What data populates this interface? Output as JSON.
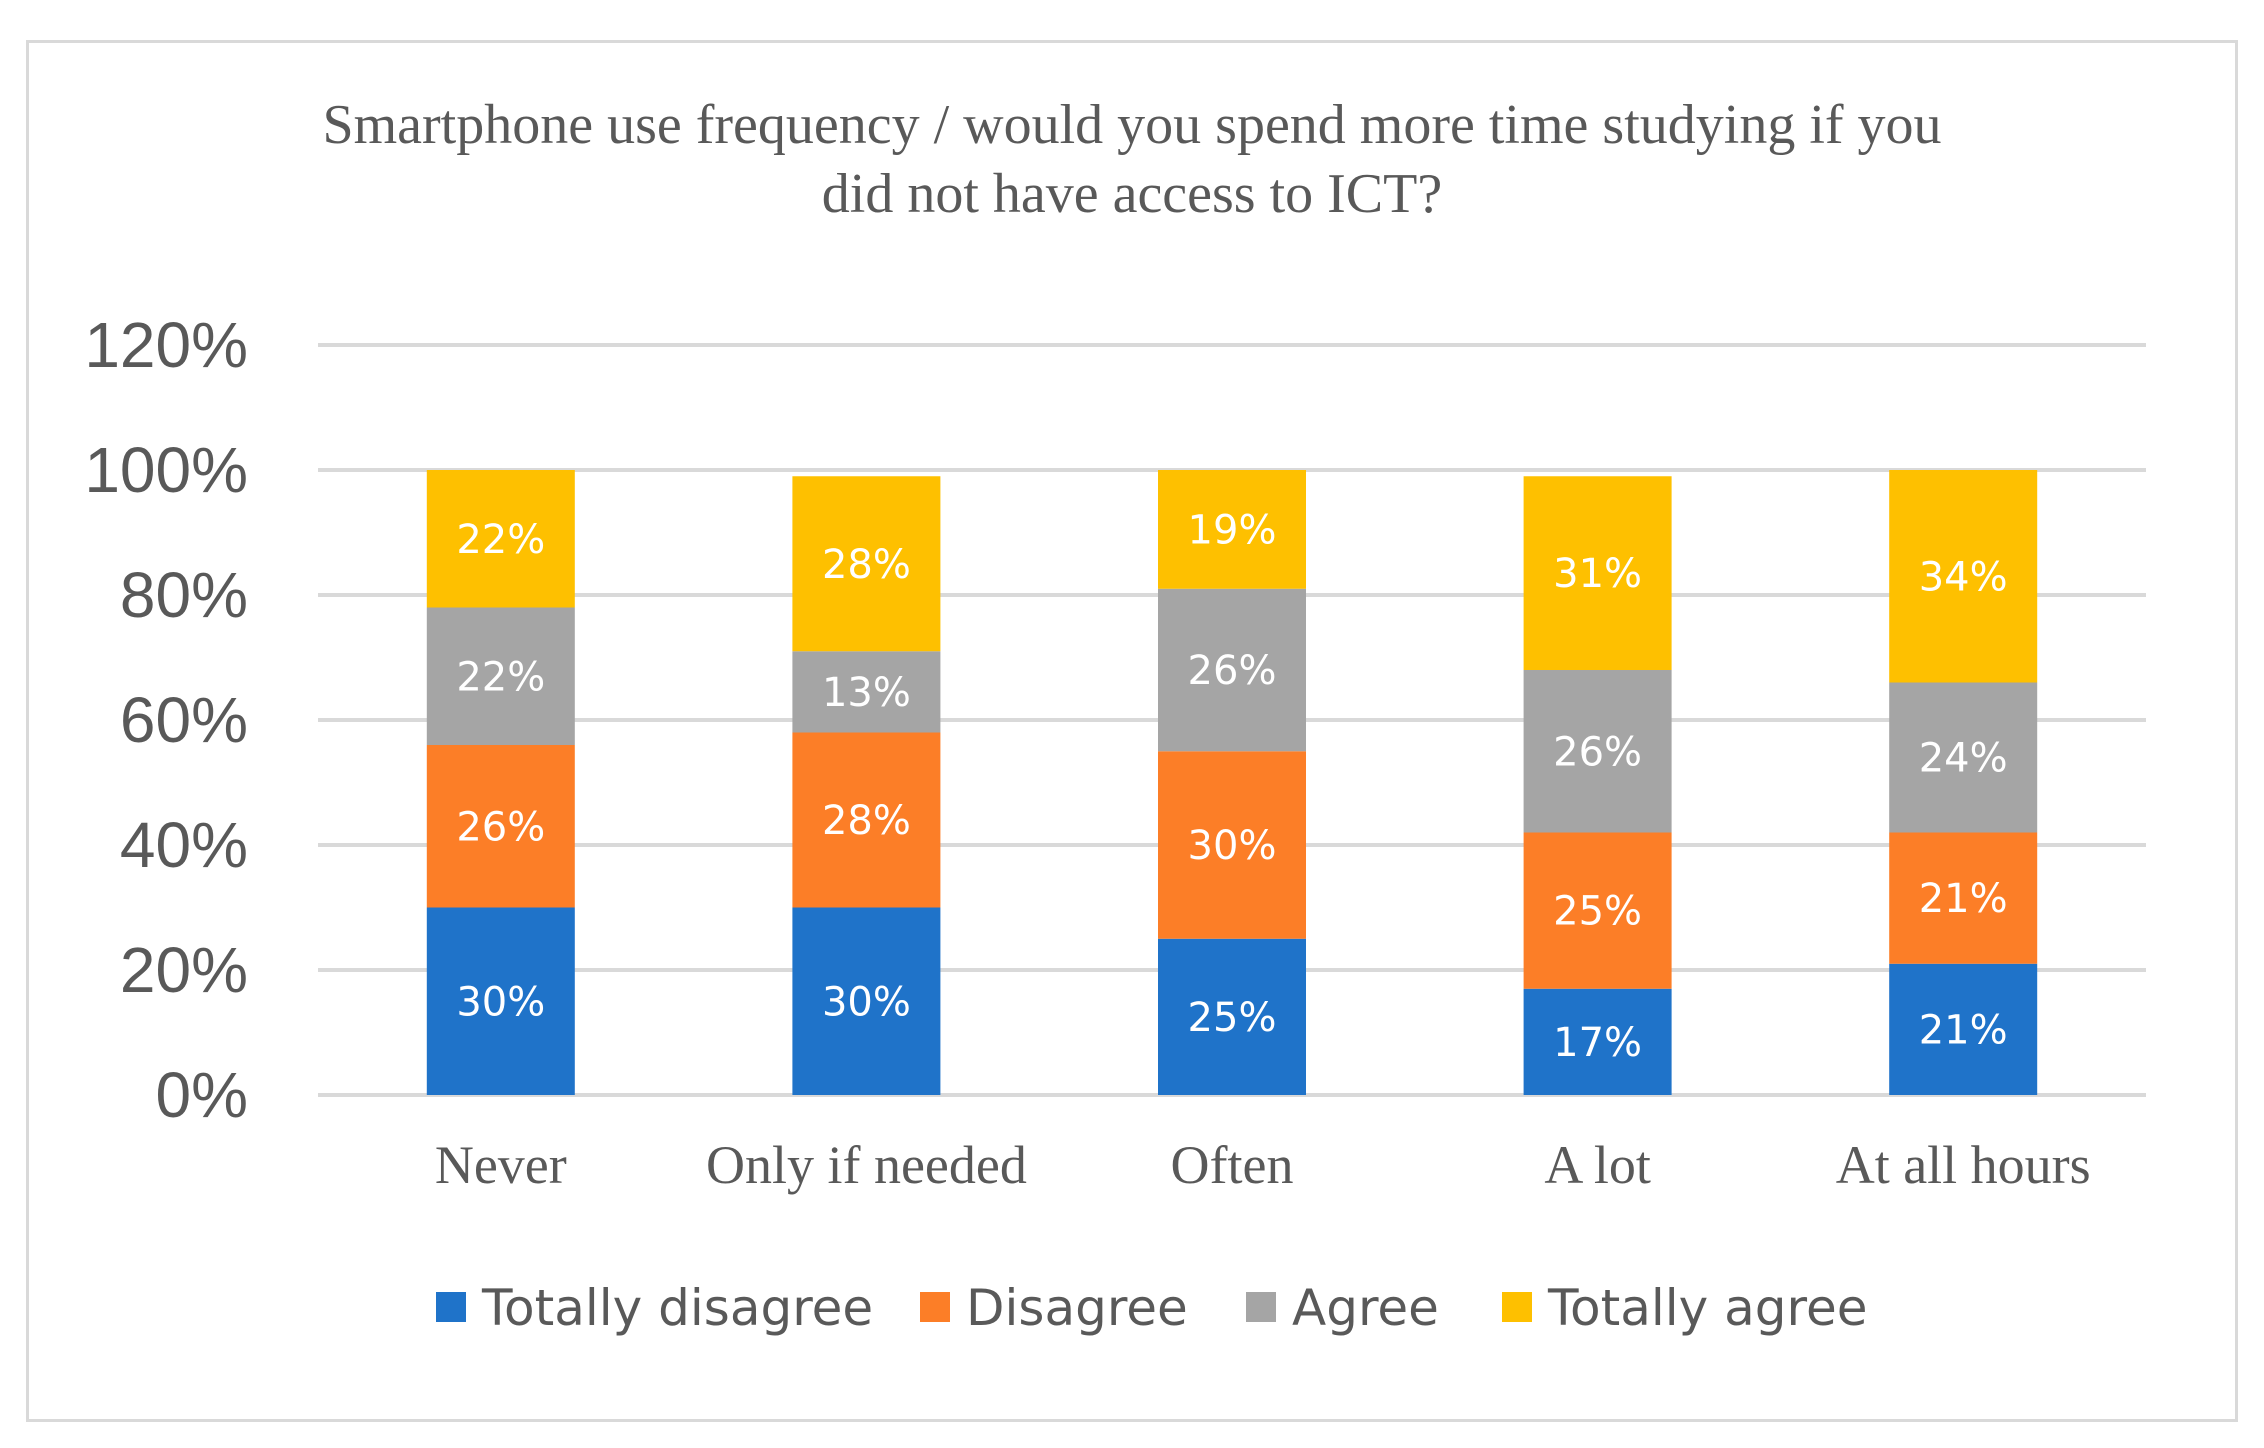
{
  "chart_data": {
    "type": "bar",
    "stacked": true,
    "title": "Smartphone use frequency / would you spend more time studying if you did not have access to ICT?",
    "title_lines": [
      "Smartphone use frequency / would you spend more time studying if you",
      "did not have access to ICT?"
    ],
    "xlabel": "",
    "ylabel": "",
    "ylim": [
      0,
      120
    ],
    "yticks": [
      0,
      20,
      40,
      60,
      80,
      100,
      120
    ],
    "ytick_labels": [
      "0%",
      "20%",
      "40%",
      "60%",
      "80%",
      "100%",
      "120%"
    ],
    "grid": true,
    "legend_position": "bottom",
    "categories": [
      "Never",
      "Only if needed",
      "Often",
      "A lot",
      "At all hours"
    ],
    "series": [
      {
        "name": "Totally disagree",
        "color": "#1F73C9",
        "values": [
          30,
          30,
          25,
          17,
          21
        ],
        "labels": [
          "30%",
          "30%",
          "25%",
          "17%",
          "21%"
        ]
      },
      {
        "name": "Disagree",
        "color": "#FC7E27",
        "values": [
          26,
          28,
          30,
          25,
          21
        ],
        "labels": [
          "26%",
          "28%",
          "30%",
          "25%",
          "21%"
        ]
      },
      {
        "name": "Agree",
        "color": "#A5A5A5",
        "values": [
          22,
          13,
          26,
          26,
          24
        ],
        "labels": [
          "22%",
          "13%",
          "26%",
          "26%",
          "24%"
        ]
      },
      {
        "name": "Totally agree",
        "color": "#FEC000",
        "values": [
          22,
          28,
          19,
          31,
          34
        ],
        "labels": [
          "22%",
          "28%",
          "19%",
          "31%",
          "34%"
        ]
      }
    ]
  }
}
